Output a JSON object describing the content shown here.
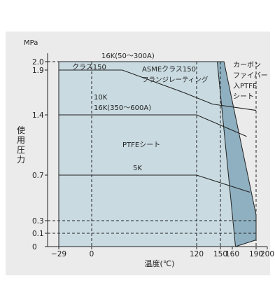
{
  "chart_data": {
    "type": "area",
    "title": "",
    "xlabel": "温度(℃)",
    "ylabel": "使用圧力",
    "yunit": "MPa",
    "xlim": [
      -36,
      200
    ],
    "ylim": [
      0,
      2.1
    ],
    "x_ticks": [
      {
        "value": -29,
        "label": "−29"
      },
      {
        "value": 0,
        "label": "0"
      },
      {
        "value": 120,
        "label": "120"
      },
      {
        "value": 150,
        "label": "150"
      },
      {
        "value": 160,
        "label": "160"
      },
      {
        "value": 190,
        "label": "190"
      },
      {
        "value": 200,
        "label": "200"
      }
    ],
    "y_ticks": [
      {
        "value": 0,
        "label": "0"
      },
      {
        "value": 0.1,
        "label": "0.1"
      },
      {
        "value": 0.3,
        "label": "0.3"
      },
      {
        "value": 0.7,
        "label": "0.7"
      },
      {
        "value": 1.4,
        "label": "1.4"
      },
      {
        "value": 1.9,
        "label": "1.9"
      },
      {
        "value": 2.0,
        "label": "2.0"
      }
    ],
    "dashed_x": [
      0,
      120,
      150,
      190
    ],
    "dashed_y": [
      2.0,
      0.3,
      0.1
    ],
    "colors": {
      "ptfe_fill": "#c9dbe1",
      "carbon_fill": "#8fb0c0",
      "panel_bg": "#ebebeb",
      "grid": "#222222"
    },
    "regions": [
      {
        "name": "PTFEシート",
        "points": [
          [
            -29,
            0
          ],
          [
            -29,
            2.0
          ],
          [
            146,
            2.0
          ],
          [
            164,
            0
          ]
        ]
      },
      {
        "name": "カーボンファイバー入PTFEシート",
        "points": [
          [
            146,
            2.0
          ],
          [
            153,
            2.0
          ],
          [
            190,
            0.35
          ],
          [
            190,
            0.05
          ],
          [
            164,
            0
          ]
        ]
      }
    ],
    "series": [
      {
        "name": "16K(50〜300A)",
        "points": [
          [
            -29,
            2.0
          ],
          [
            146,
            2.0
          ]
        ]
      },
      {
        "name": "ASMEクラス150フランジレーティング",
        "points": [
          [
            -29,
            1.9
          ],
          [
            35,
            1.9
          ],
          [
            105,
            1.65
          ],
          [
            140,
            1.52
          ],
          [
            190,
            1.45
          ]
        ]
      },
      {
        "name": "10K 16K(350〜600A)",
        "points": [
          [
            -29,
            1.4
          ],
          [
            120,
            1.4
          ],
          [
            178,
            1.15
          ]
        ]
      },
      {
        "name": "5K",
        "points": [
          [
            -29,
            0.7
          ],
          [
            120,
            0.7
          ],
          [
            182,
            0.55
          ]
        ]
      }
    ],
    "labels": {
      "l16k": "16K(50〜300A)",
      "class150": "クラス150",
      "asme": "ASMEクラス150",
      "asme2": "フランジレーティング",
      "k10": "10K",
      "k16": "16K(350〜600A)",
      "ptfe": "PTFEシート",
      "k5": "5K",
      "carbon1": "カーボン",
      "carbon2": "ファイバー",
      "carbon3": "入PTFE",
      "carbon4": "シート"
    }
  }
}
